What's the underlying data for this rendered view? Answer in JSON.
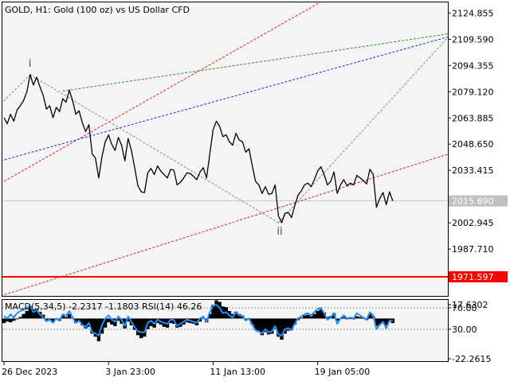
{
  "symbol_header": "GOLD, H1:  Gold (100 oz) vs US Dollar CFD",
  "chart_data": [
    {
      "type": "line",
      "title": "GOLD, H1:  Gold (100 oz) vs US Dollar CFD",
      "series_name": "Price",
      "price_ticks": [
        "2124.855",
        "2109.590",
        "2094.355",
        "2079.120",
        "2063.885",
        "2048.650",
        "2033.415",
        "2002.945",
        "1987.710"
      ],
      "price_tick_values": [
        2124.855,
        2109.59,
        2094.355,
        2079.12,
        2063.885,
        2048.65,
        2033.415,
        2002.945,
        1987.71
      ],
      "ylim": [
        1960.5,
        2131.0
      ],
      "current_price_label": "2015.690",
      "current_price": 2015.69,
      "support_label": "1971.597",
      "support_price": 1971.597,
      "wave_labels": [
        {
          "text": "i",
          "bar": 8,
          "price": 2093.5
        },
        {
          "text": "ii",
          "bar": 84,
          "price": 1996.0
        }
      ],
      "x_labels": [
        "26 Dec 2023",
        "3 Jan 23:00",
        "11 Jan 13:00",
        "19 Jan 05:00"
      ],
      "x_label_bars": [
        0,
        32,
        64,
        96
      ],
      "bar_count": 120,
      "price": [
        2064.0,
        2060.5,
        2066.0,
        2062.0,
        2068.5,
        2071.0,
        2074.0,
        2079.0,
        2089.0,
        2083.0,
        2087.5,
        2082.0,
        2077.0,
        2069.0,
        2071.0,
        2064.0,
        2070.0,
        2067.5,
        2075.0,
        2073.0,
        2080.0,
        2074.0,
        2066.0,
        2068.0,
        2061.0,
        2056.0,
        2060.0,
        2043.0,
        2040.5,
        2029.0,
        2041.5,
        2050.0,
        2054.0,
        2048.5,
        2045.0,
        2052.5,
        2048.0,
        2039.0,
        2052.0,
        2045.0,
        2035.0,
        2024.5,
        2021.0,
        2020.5,
        2032.0,
        2034.5,
        2031.0,
        2036.0,
        2033.0,
        2031.0,
        2029.0,
        2034.0,
        2033.5,
        2025.0,
        2026.5,
        2029.0,
        2032.0,
        2031.5,
        2030.0,
        2028.0,
        2032.5,
        2035.0,
        2029.0,
        2043.0,
        2057.0,
        2062.0,
        2059.0,
        2053.0,
        2054.0,
        2050.0,
        2048.0,
        2055.0,
        2051.0,
        2050.0,
        2044.0,
        2046.0,
        2036.0,
        2027.0,
        2025.0,
        2020.0,
        2024.0,
        2019.5,
        2020.0,
        2025.0,
        2007.0,
        2003.0,
        2008.5,
        2009.0,
        2006.0,
        2013.0,
        2019.0,
        2021.5,
        2025.0,
        2026.0,
        2024.0,
        2028.0,
        2033.0,
        2035.5,
        2031.0,
        2025.0,
        2027.0,
        2032.5,
        2020.0,
        2025.0,
        2028.0,
        2024.5,
        2026.0,
        2025.0,
        2030.5,
        2029.0,
        2027.5,
        2025.5,
        2034.0,
        2031.0,
        2012.0,
        2017.0,
        2020.5,
        2013.5,
        2021.0,
        2015.69
      ],
      "trend_lines": [
        {
          "name": "red-upper-channel",
          "color": "#e31a1c",
          "style": "dashed",
          "from": {
            "bar": -1,
            "price": 2026.0
          },
          "to": {
            "bar": 107,
            "price": 2142.0
          }
        },
        {
          "name": "red-lower-channel",
          "color": "#e31a1c",
          "style": "dashed",
          "from": {
            "bar": -1,
            "price": 1960.5
          },
          "to": {
            "bar": 137,
            "price": 2043.5
          }
        },
        {
          "name": "blue-trend",
          "color": "#1a2fd6",
          "style": "dashed",
          "from": {
            "bar": -1,
            "price": 2039.0
          },
          "to": {
            "bar": 137,
            "price": 2111.5
          }
        },
        {
          "name": "green-trend",
          "color": "#2e8b2e",
          "style": "dashed",
          "from": {
            "bar": 18,
            "price": 2079.5
          },
          "to": {
            "bar": 137,
            "price": 2113.0
          }
        },
        {
          "name": "gray-wave-0-i",
          "color": "#8a8a8a",
          "style": "dashed",
          "from": {
            "bar": -1,
            "price": 2072.0
          },
          "to": {
            "bar": 8,
            "price": 2089.0
          }
        },
        {
          "name": "gray-wave-i-ii",
          "color": "#8a8a8a",
          "style": "dashed",
          "from": {
            "bar": 8,
            "price": 2089.0
          },
          "to": {
            "bar": 84,
            "price": 2003.0
          }
        },
        {
          "name": "gray-wave-ii-iii",
          "color": "#8a8a8a",
          "style": "dashed",
          "from": {
            "bar": 84,
            "price": 2003.0
          },
          "to": {
            "bar": 137,
            "price": 2113.0
          }
        }
      ],
      "grid": false
    },
    {
      "type": "line",
      "title": "MACD(5,34,5) -2.2317 -1.1803 RSI(14) 46.26",
      "indicator_ticks": [
        "17.6302",
        "70.00",
        "30.00",
        "-22.2615"
      ],
      "indicator_tick_values": [
        17.6302,
        70.0,
        30.0,
        -22.2615
      ],
      "levels": [
        70.0,
        30.0
      ],
      "ylim": [
        -30.0,
        85.0
      ],
      "macd_histogram": [
        -6,
        -4,
        -5,
        -3,
        -1,
        2,
        6,
        10,
        16,
        12,
        13,
        9,
        5,
        -3,
        -2,
        -5,
        -1,
        -3,
        4,
        2,
        6,
        1,
        -6,
        -4,
        -9,
        -13,
        -11,
        -20,
        -24,
        -30,
        -20,
        -12,
        -5,
        -8,
        -10,
        -3,
        -7,
        -13,
        -4,
        -9,
        -15,
        -22,
        -26,
        -24,
        -14,
        -10,
        -12,
        -6,
        -8,
        -11,
        -12,
        -6,
        -7,
        -12,
        -11,
        -8,
        -5,
        -6,
        -7,
        -9,
        -4,
        0,
        -5,
        6,
        18,
        24,
        22,
        16,
        15,
        10,
        6,
        9,
        6,
        4,
        -2,
        -1,
        -8,
        -15,
        -18,
        -22,
        -18,
        -21,
        -20,
        -14,
        -24,
        -28,
        -20,
        -16,
        -15,
        -8,
        -2,
        1,
        4,
        5,
        3,
        6,
        10,
        12,
        8,
        2,
        3,
        7,
        -3,
        0,
        2,
        -1,
        0,
        -1,
        3,
        2,
        0,
        -2,
        6,
        3,
        -10,
        -8,
        -5,
        -9,
        -4,
        -6
      ],
      "rsi": [
        55,
        50,
        58,
        52,
        60,
        64,
        66,
        70,
        74,
        62,
        66,
        58,
        52,
        45,
        48,
        42,
        50,
        46,
        58,
        55,
        64,
        52,
        42,
        46,
        38,
        34,
        42,
        24,
        22,
        18,
        38,
        50,
        56,
        48,
        44,
        54,
        48,
        36,
        54,
        44,
        34,
        26,
        24,
        24,
        42,
        46,
        40,
        48,
        44,
        42,
        40,
        48,
        47,
        36,
        40,
        44,
        48,
        46,
        44,
        42,
        50,
        54,
        44,
        62,
        74,
        76,
        70,
        60,
        62,
        56,
        52,
        62,
        56,
        55,
        46,
        50,
        38,
        28,
        26,
        22,
        30,
        24,
        26,
        36,
        20,
        18,
        30,
        32,
        28,
        40,
        50,
        54,
        58,
        60,
        56,
        62,
        68,
        70,
        60,
        48,
        52,
        60,
        40,
        50,
        56,
        50,
        52,
        50,
        60,
        56,
        52,
        48,
        62,
        56,
        30,
        38,
        44,
        32,
        46,
        46.26
      ]
    }
  ]
}
